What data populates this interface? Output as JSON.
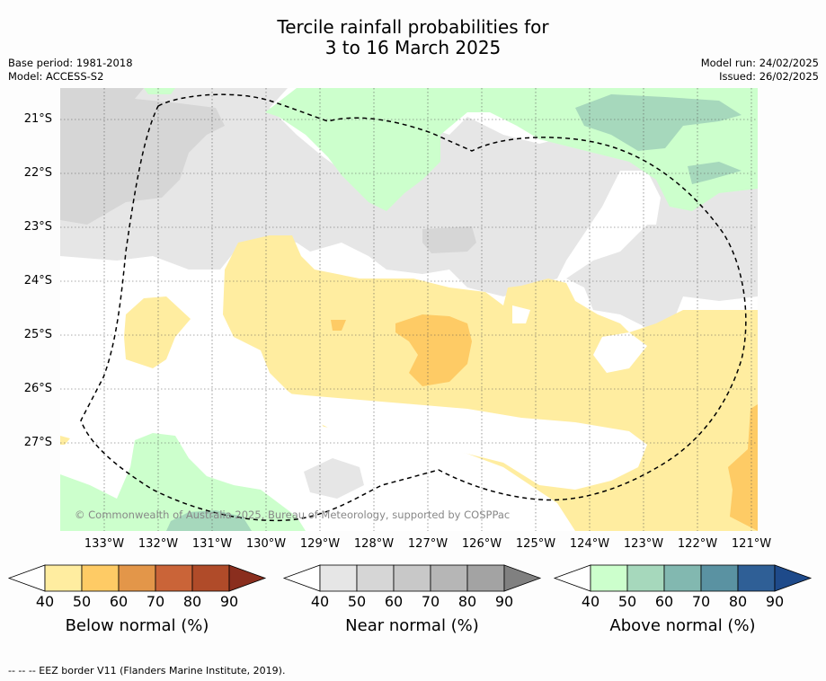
{
  "title_line1": "Tercile rainfall probabilities for",
  "title_line2": "3 to 16 March 2025",
  "base_period": "Base period: 1981-2018",
  "model": "Model: ACCESS-S2",
  "model_run": "Model run: 24/02/2025",
  "issued": "Issued: 26/02/2025",
  "lat_labels": [
    "21°S",
    "22°S",
    "23°S",
    "24°S",
    "25°S",
    "26°S",
    "27°S"
  ],
  "lon_labels": [
    "133°W",
    "132°W",
    "131°W",
    "130°W",
    "129°W",
    "128°W",
    "127°W",
    "126°W",
    "125°W",
    "124°W",
    "123°W",
    "122°W",
    "121°W"
  ],
  "copyright": "© Commonwealth of Australia 2025, Bureau of Meteorology, supported by COSPPac",
  "colorbars": [
    {
      "label": "Below normal (%)",
      "ticks": [
        "40",
        "50",
        "60",
        "70",
        "80",
        "90"
      ],
      "colors": [
        "#ffffff",
        "#ffeda0",
        "#fecb65",
        "#e39649",
        "#ca6438",
        "#b04b29",
        "#8a2e1e"
      ]
    },
    {
      "label": "Near normal (%)",
      "ticks": [
        "40",
        "50",
        "60",
        "70",
        "80",
        "90"
      ],
      "colors": [
        "#ffffff",
        "#e6e6e6",
        "#d6d6d6",
        "#c8c8c8",
        "#b6b6b6",
        "#a3a3a3",
        "#808080"
      ]
    },
    {
      "label": "Above normal (%)",
      "ticks": [
        "40",
        "50",
        "60",
        "70",
        "80",
        "90"
      ],
      "colors": [
        "#ffffff",
        "#ccffcc",
        "#a6d8bc",
        "#82b8b0",
        "#5a92a2",
        "#2f5f96",
        "#1e4a8a"
      ]
    }
  ],
  "footer": "--  --  -- EEZ border V11 (Flanders Marine Institute, 2019)."
}
